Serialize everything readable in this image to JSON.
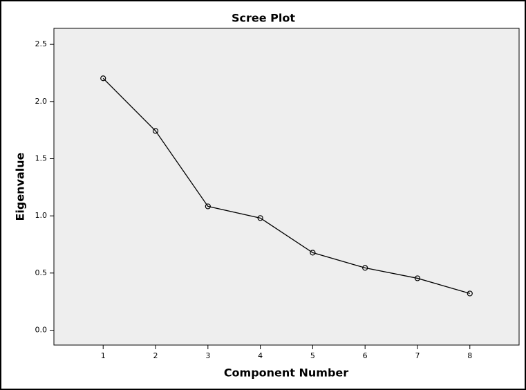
{
  "chart_data": {
    "type": "line",
    "title": "Scree Plot",
    "x_label": "Component Number",
    "y_label": "Eigenvalue",
    "x": [
      1,
      2,
      3,
      4,
      5,
      6,
      7,
      8
    ],
    "values": [
      2.203,
      1.743,
      1.083,
      0.981,
      0.678,
      0.545,
      0.454,
      0.321
    ],
    "color": "#000000",
    "xlim": [
      0.06,
      8.94
    ],
    "xticks": [
      1,
      2,
      3,
      4,
      5,
      6,
      7,
      8
    ],
    "ylim": [
      -0.13,
      2.64
    ],
    "yticks": [
      {
        "value": 0,
        "label": "0.0"
      },
      0.5,
      {
        "value": 1,
        "label": "1.0"
      },
      1.5,
      {
        "value": 2,
        "label": "2.0"
      },
      2.5
    ],
    "grid": false
  }
}
